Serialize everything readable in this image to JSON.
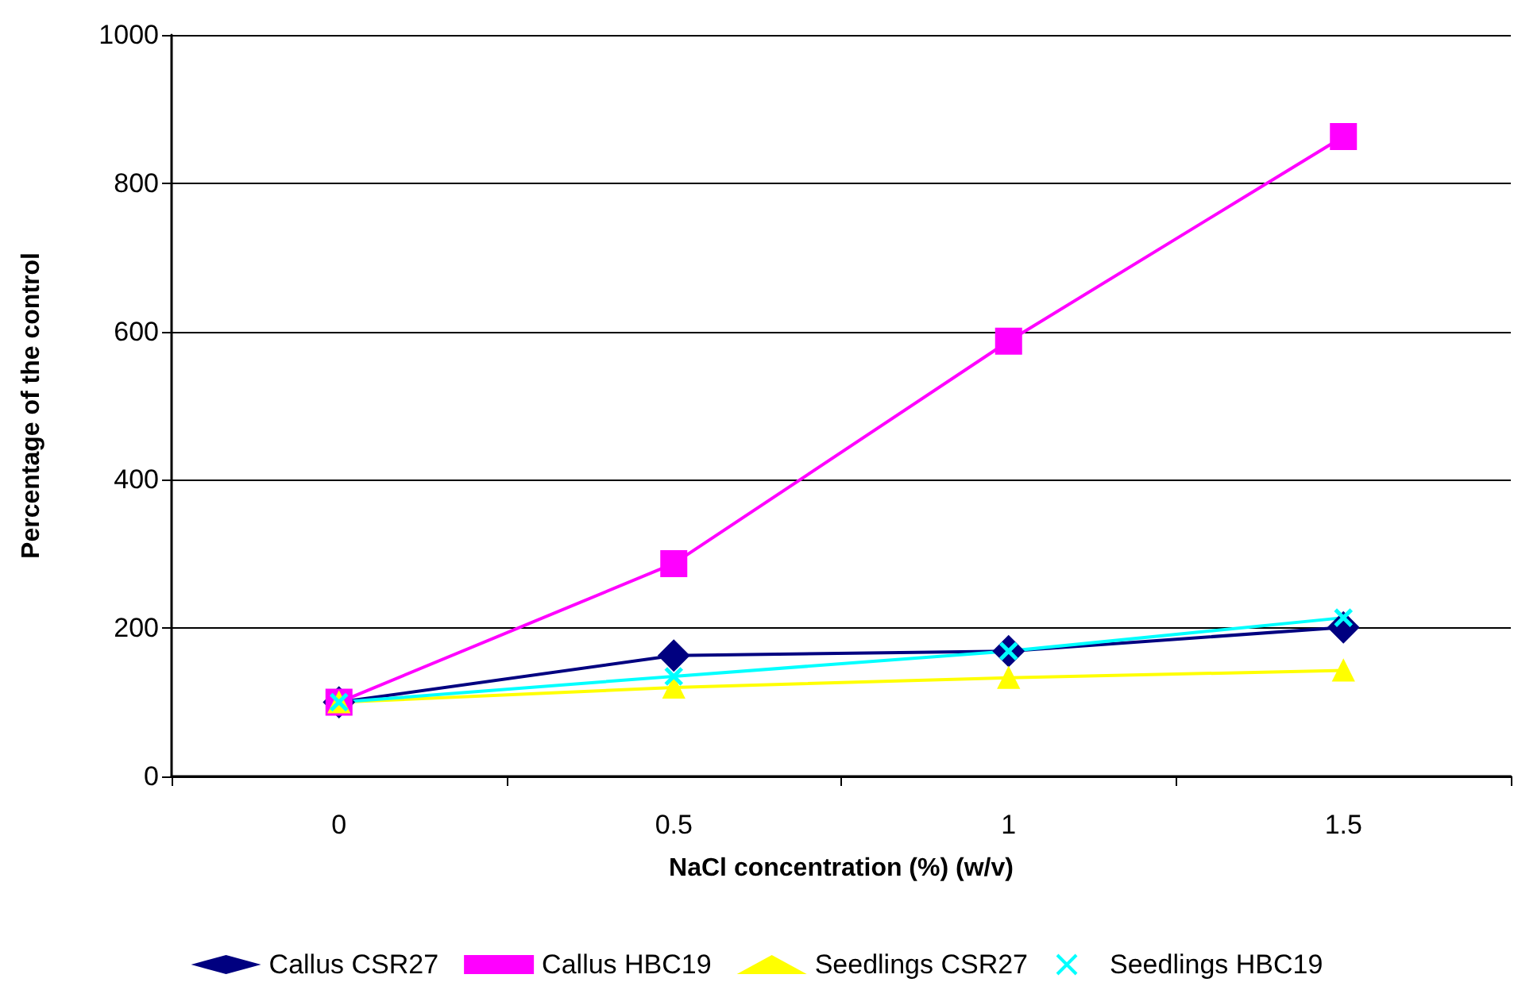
{
  "chart_data": {
    "type": "line",
    "xlabel": "NaCl concentration (%) (w/v)",
    "ylabel": "Percentage of the control",
    "categories": [
      "0",
      "0.5",
      "1",
      "1.5"
    ],
    "series": [
      {
        "name": "Callus CSR27",
        "color": "#000080",
        "marker": "diamond",
        "values": [
          100,
          163,
          169,
          201
        ]
      },
      {
        "name": "Callus HBC19",
        "color": "#ff00ff",
        "marker": "square",
        "values": [
          100,
          287,
          587,
          863
        ]
      },
      {
        "name": "Seedlings CSR27",
        "color": "#ffff00",
        "marker": "triangle",
        "values": [
          100,
          120,
          133,
          143
        ]
      },
      {
        "name": "Seedlings HBC19",
        "color": "#00ffff",
        "marker": "cross",
        "values": [
          100,
          135,
          169,
          214
        ]
      }
    ],
    "ylim": [
      0,
      1000
    ],
    "yticks": [
      0,
      200,
      400,
      600,
      800,
      1000
    ],
    "grid": "y",
    "legend": "bottom"
  }
}
